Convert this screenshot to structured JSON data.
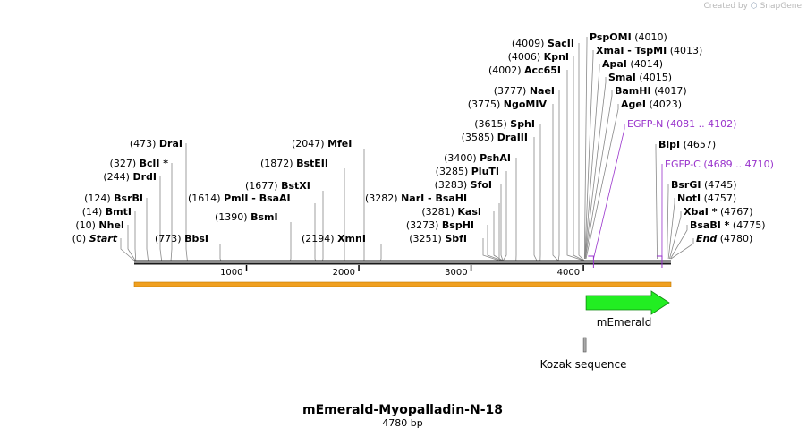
{
  "credit": {
    "created_by": "Created by",
    "brand": "SnapGene"
  },
  "title": "mEmerald-Myopalladin-N-18",
  "subtitle": "4780 bp",
  "sequence_length": 4780,
  "ruler_ticks": [
    {
      "pos": 1000,
      "label": "1000"
    },
    {
      "pos": 2000,
      "label": "2000"
    },
    {
      "pos": 3000,
      "label": "3000"
    },
    {
      "pos": 4000,
      "label": "4000"
    }
  ],
  "sites_left": [
    {
      "pos": "(0)",
      "name": "Start",
      "bp": 0,
      "italic": true
    },
    {
      "pos": "(10)",
      "name": "NheI",
      "bp": 10
    },
    {
      "pos": "(14)",
      "name": "BmtI",
      "bp": 14
    },
    {
      "pos": "(124)",
      "name": "BsrBI",
      "bp": 124
    },
    {
      "pos": "(244)",
      "name": "DrdI",
      "bp": 244
    },
    {
      "pos": "(327)",
      "name": "BclI *",
      "bp": 327
    },
    {
      "pos": "(473)",
      "name": "DraI",
      "bp": 473
    }
  ],
  "sites_mid": [
    {
      "pos": "(773)",
      "name": "BbsI",
      "bp": 773,
      "pos_left": true
    },
    {
      "pos": "(1390)",
      "name": "BsmI",
      "bp": 1390
    },
    {
      "pos": "(1614)",
      "name": "PmlI  -  BsaAI",
      "bp": 1614,
      "pos_left": true
    },
    {
      "pos": "(1677)",
      "name": "BstXI",
      "bp": 1677
    },
    {
      "pos": "(1872)",
      "name": "BstEII",
      "bp": 1872
    },
    {
      "pos": "(2047)",
      "name": "MfeI",
      "bp": 2047
    },
    {
      "pos": "(2194)",
      "name": "XmnI",
      "bp": 2194,
      "pos_left": true
    },
    {
      "pos": "(3282)",
      "name": "NarI  -  BsaHI",
      "bp": 3282,
      "pos_left": true
    }
  ],
  "sites_center": [
    {
      "pos": "(3251)",
      "name": "SbfI",
      "bp": 3251
    },
    {
      "pos": "(3273)",
      "name": "BspHI",
      "bp": 3273
    },
    {
      "pos": "(3281)",
      "name": "KasI",
      "bp": 3281
    },
    {
      "pos": "(3283)",
      "name": "SfoI",
      "bp": 3283
    },
    {
      "pos": "(3285)",
      "name": "PluTI",
      "bp": 3285
    },
    {
      "pos": "(3400)",
      "name": "PshAI",
      "bp": 3400
    },
    {
      "pos": "(3585)",
      "name": "DraIII",
      "bp": 3585
    },
    {
      "pos": "(3615)",
      "name": "SphI",
      "bp": 3615
    },
    {
      "pos": "(3775)",
      "name": "NgoMIV",
      "bp": 3775
    },
    {
      "pos": "(3777)",
      "name": "NaeI",
      "bp": 3777
    },
    {
      "pos": "(4002)",
      "name": "Acc65I",
      "bp": 4002
    },
    {
      "pos": "(4006)",
      "name": "KpnI",
      "bp": 4006
    },
    {
      "pos": "(4009)",
      "name": "SacII",
      "bp": 4009
    }
  ],
  "sites_right": [
    {
      "pos": "(4010)",
      "name": "PspOMI",
      "bp": 4010
    },
    {
      "pos": "(4013)",
      "name": "XmaI  -  TspMI",
      "bp": 4013
    },
    {
      "pos": "(4014)",
      "name": "ApaI",
      "bp": 4014
    },
    {
      "pos": "(4015)",
      "name": "SmaI",
      "bp": 4015
    },
    {
      "pos": "(4017)",
      "name": "BamHI",
      "bp": 4017
    },
    {
      "pos": "(4023)",
      "name": "AgeI",
      "bp": 4023
    },
    {
      "pos": "(4081 .. 4102)",
      "name": "EGFP-N",
      "bp": 4090,
      "primer": true
    },
    {
      "pos": "(4657)",
      "name": "BlpI",
      "bp": 4657
    },
    {
      "pos": "(4689 .. 4710)",
      "name": "EGFP-C",
      "bp": 4700,
      "primer": true
    },
    {
      "pos": "(4745)",
      "name": "BsrGI",
      "bp": 4745
    },
    {
      "pos": "(4757)",
      "name": "NotI",
      "bp": 4757
    },
    {
      "pos": "(4767)",
      "name": "XbaI *",
      "bp": 4767
    },
    {
      "pos": "(4775)",
      "name": "BsaBI *",
      "bp": 4775
    },
    {
      "pos": "(4780)",
      "name": "End",
      "bp": 4780,
      "italic": true
    }
  ],
  "features": [
    {
      "name": "mEmerald",
      "start": 4024,
      "end": 4780,
      "color": "#22ee22"
    },
    {
      "name": "Kozak sequence",
      "start": 4000,
      "end": 4010,
      "color": "#a9a9a9"
    }
  ],
  "colors": {
    "backbone": "#1a1a1a",
    "primer": "#9933cc",
    "orf_bar": "#f0a020",
    "feature": "#22ee22"
  }
}
